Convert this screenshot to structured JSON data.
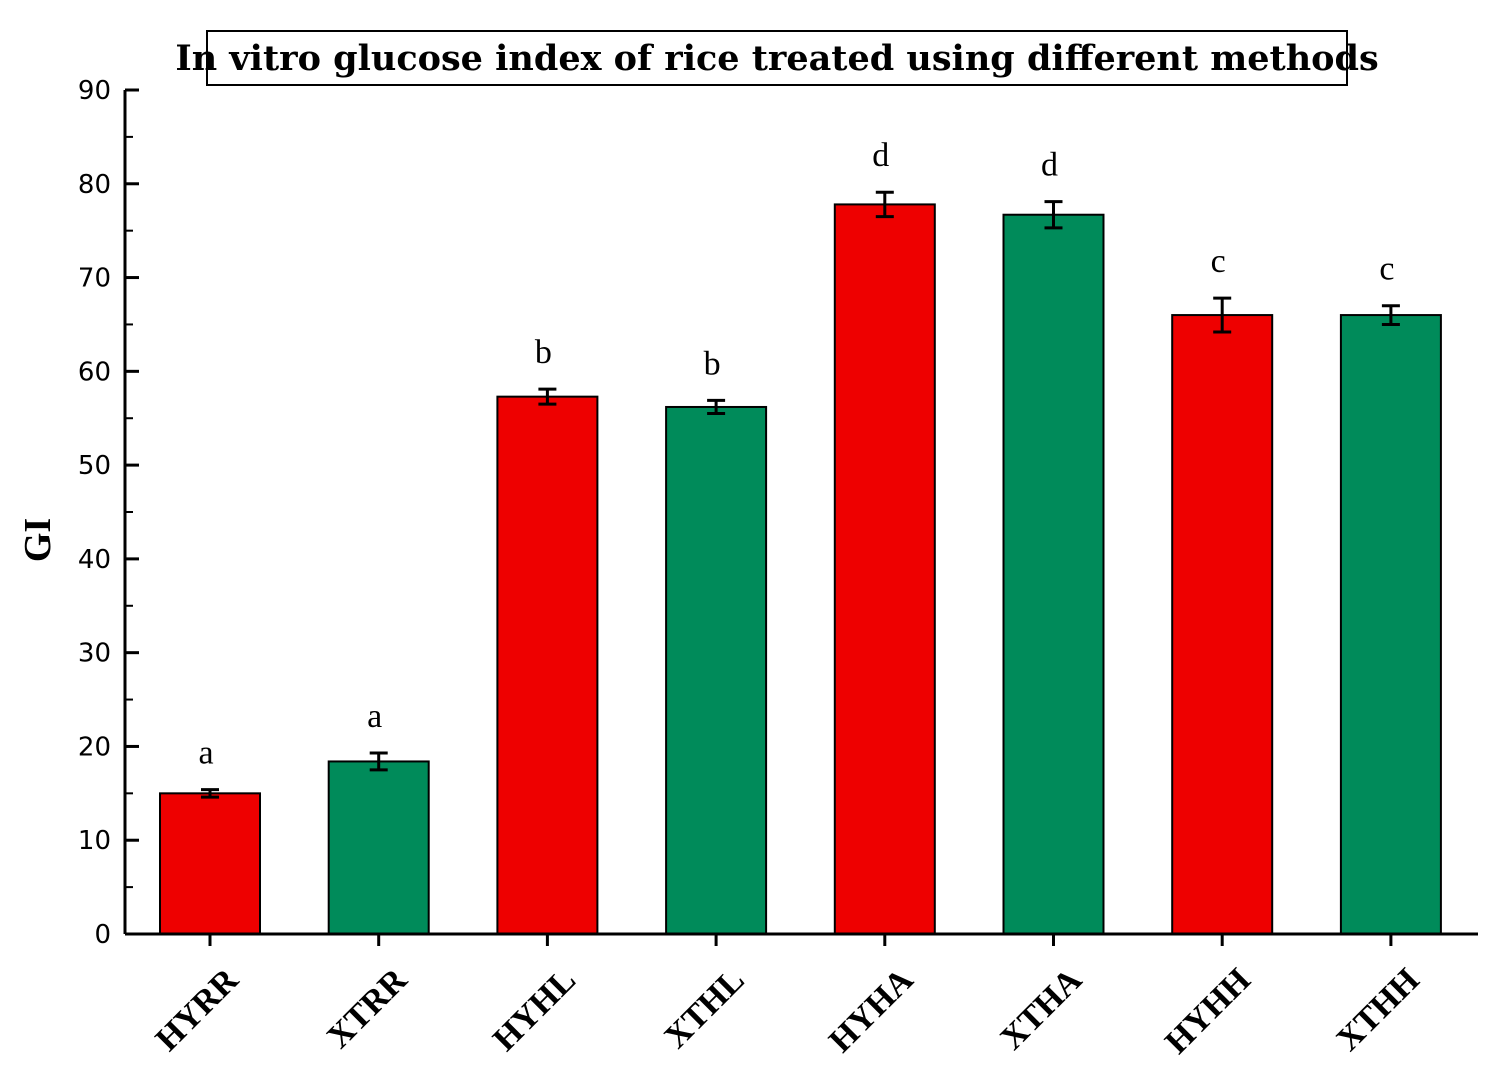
{
  "chart_data": {
    "type": "bar",
    "title": "In vitro glucose index of rice treated using different methods",
    "xlabel": "",
    "ylabel": "GI",
    "ylim": [
      0,
      90
    ],
    "yticks": [
      "0",
      "10",
      "20",
      "30",
      "40",
      "50",
      "60",
      "70",
      "80",
      "90"
    ],
    "categories": [
      "HYRR",
      "XTRR",
      "HYHL",
      "XTHL",
      "HYHA",
      "XTHA",
      "HYHH",
      "XTHH"
    ],
    "values": [
      15.0,
      18.4,
      57.3,
      56.2,
      77.8,
      76.7,
      66.0,
      66.0
    ],
    "errors": [
      0.4,
      0.9,
      0.8,
      0.7,
      1.3,
      1.4,
      1.8,
      1.0
    ],
    "significance": [
      "a",
      "a",
      "b",
      "b",
      "d",
      "d",
      "c",
      "c"
    ],
    "bar_colors": [
      "#ee0000",
      "#008b5a",
      "#ee0000",
      "#008b5a",
      "#ee0000",
      "#008b5a",
      "#ee0000",
      "#008b5a"
    ],
    "grid": false,
    "legend": "none"
  }
}
